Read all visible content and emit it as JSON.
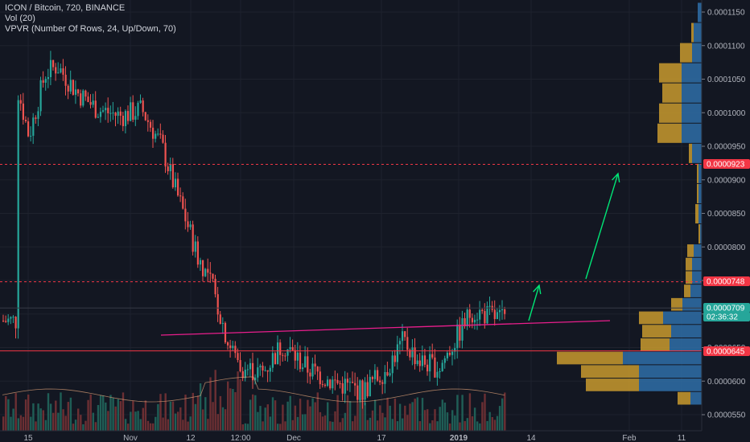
{
  "legend": {
    "symbol_line": "ICON / Bitcoin, 720, BINANCE",
    "vol_line": "Vol (20)",
    "vpvr_line": "VPVR (Number Of Rows, 24, Up/Down, 70)"
  },
  "chart_data": {
    "type": "candlestick",
    "title": "ICON / Bitcoin, 720, BINANCE",
    "exchange": "BINANCE",
    "interval": "720",
    "indicators": [
      "Vol (20)",
      "VPVR (Number Of Rows, 24, Up/Down, 70)"
    ],
    "y_axis": {
      "side": "right",
      "range": [
        5.4e-05,
        0.0001165
      ],
      "ticks": [
        "0.0001150",
        "0.0001100",
        "0.0001050",
        "0.0001000",
        "0.0000950",
        "0.0000900",
        "0.0000850",
        "0.0000800",
        "0.0000750",
        "0.0000700",
        "0.0000650",
        "0.0000600",
        "0.0000550"
      ]
    },
    "x_axis": {
      "ticks": [
        "15",
        "Nov",
        "12",
        "12:00",
        "Dec",
        "17",
        "2019",
        "14",
        "Feb",
        "11"
      ]
    },
    "price_labels": [
      {
        "value": "0.0000923",
        "color": "#f23645"
      },
      {
        "value": "0.0000748",
        "color": "#f23645"
      },
      {
        "value": "0.0000709",
        "color": "#26a69a"
      },
      {
        "value": "02:36:32",
        "color": "#26a69a"
      },
      {
        "value": "0.0000645",
        "color": "#f23645"
      }
    ],
    "horizontal_levels": [
      {
        "price": 9.23e-05,
        "style": "dashed",
        "color": "#f23645"
      },
      {
        "price": 7.48e-05,
        "style": "dashed",
        "color": "#f23645"
      },
      {
        "price": 7.09e-05,
        "style": "solid",
        "color": "#363a45"
      },
      {
        "price": 6.45e-05,
        "style": "solid",
        "color": "#f23645"
      }
    ],
    "trendline": {
      "color": "#e91e8c",
      "from": {
        "date": "2018-11-06",
        "price": 6.78e-05
      },
      "to": {
        "date": "2019-02-06",
        "price": 6.88e-05
      }
    },
    "arrows": [
      {
        "color": "#00e676",
        "from": {
          "date": "2019-01-12",
          "price": 6.85e-05
        },
        "to": {
          "date": "2019-01-14",
          "price": 7.35e-05
        }
      },
      {
        "color": "#00e676",
        "from": {
          "date": "2019-02-04",
          "price": 7.48e-05
        },
        "to": {
          "date": "2019-02-07",
          "price": 9.07e-05
        }
      }
    ],
    "series": [
      {
        "name": "price",
        "path_points": [
          [
            0.000108,
            0.000104
          ],
          [
            0.00011,
            9.65e-05
          ],
          [
            0.000105,
            0.0001058
          ],
          [
            0.000108,
            0.000107
          ],
          [
            0.000106,
            0.000103
          ],
          [
            0.000103,
            0.0001005
          ],
          [
            0.000101,
            9.95e-05
          ],
          [
            0.0001025,
            0.0001005
          ],
          [
            0.0001,
            9.5e-05
          ],
          [
            9.6e-05,
            8.92e-05
          ],
          [
            9e-05,
            8.4e-05
          ],
          [
            8.4e-05,
            7.85e-05
          ],
          [
            7.9e-05,
            7.44e-05
          ],
          [
            6.8e-05,
            6.55e-05
          ],
          [
            6.5e-05,
            6.2e-05
          ],
          [
            6.3e-05,
            6.12e-05
          ],
          [
            6.7e-05,
            6.55e-05
          ],
          [
            6.5e-05,
            6.2e-05
          ],
          [
            6.2e-05,
            6e-05
          ],
          [
            6e-05,
            5.85e-05
          ],
          [
            6e-05,
            6.2e-05
          ],
          [
            6.4e-05,
            6.6e-05
          ],
          [
            6.7e-05,
            6.3e-05
          ],
          [
            6.3e-05,
            6.2e-05
          ],
          [
            6.4e-05,
            7.05e-05
          ],
          [
            7e-05,
            7e-05
          ],
          [
            6.9e-05,
            6.9e-05
          ]
        ]
      }
    ],
    "volume_profile": {
      "rows": 24,
      "mode": "Up/Down",
      "value_area": 70,
      "colors": {
        "up": "#2962ff",
        "down": "#f2a93b"
      }
    }
  }
}
